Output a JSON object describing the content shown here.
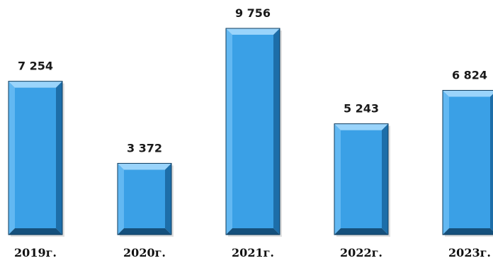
{
  "chart_data": {
    "type": "bar",
    "categories": [
      "2019г.",
      "2020г.",
      "2021г.",
      "2022г.",
      "2023г."
    ],
    "values": [
      7254,
      3372,
      9756,
      5243,
      6824
    ],
    "value_labels": [
      "7 254",
      "3 372",
      "9 756",
      "5 243",
      "6 824"
    ],
    "ylim": [
      0,
      9756
    ],
    "grid": false,
    "colors": {
      "bar_face": "#3aa0e6",
      "bar_top": "#9ad4fb",
      "bar_left": "#62b8f2",
      "bar_right": "#1d6ea9",
      "bar_bottom": "#15507c",
      "bar_edge": "#0c3b5e"
    }
  }
}
